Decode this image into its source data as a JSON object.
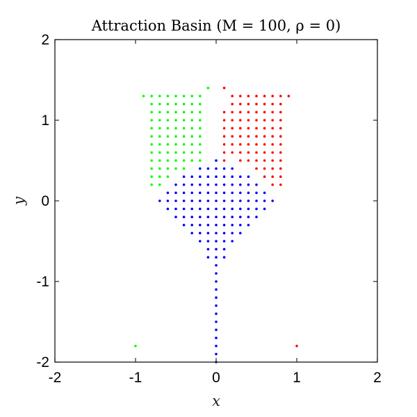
{
  "chart_data": {
    "type": "scatter",
    "title": "Attraction Basin (M = 100, ρ = 0)",
    "xlabel": "x",
    "ylabel": "y",
    "xlim": [
      -2,
      2
    ],
    "ylim": [
      -2,
      2
    ],
    "xticks": [
      "-2",
      "-1",
      "0",
      "1",
      "2"
    ],
    "yticks": [
      "-2",
      "-1",
      "0",
      "1",
      "2"
    ],
    "grid": false,
    "box": true,
    "grid_step": 0.1,
    "series": [
      {
        "color": "#00ff00",
        "rows": [
          {
            "y": 1.4,
            "x": [
              -0.1
            ]
          },
          {
            "y": 1.3,
            "x": [
              -0.9,
              -0.8,
              -0.7,
              -0.6,
              -0.5,
              -0.4,
              -0.3,
              -0.2
            ]
          },
          {
            "y": 1.2,
            "x": [
              -0.8,
              -0.7,
              -0.6,
              -0.5,
              -0.4,
              -0.3,
              -0.2
            ]
          },
          {
            "y": 1.1,
            "x": [
              -0.8,
              -0.7,
              -0.6,
              -0.5,
              -0.4,
              -0.3,
              -0.2
            ]
          },
          {
            "y": 1.0,
            "x": [
              -0.8,
              -0.7,
              -0.6,
              -0.5,
              -0.4,
              -0.3,
              -0.2
            ]
          },
          {
            "y": 0.9,
            "x": [
              -0.8,
              -0.7,
              -0.6,
              -0.5,
              -0.4,
              -0.3,
              -0.2
            ]
          },
          {
            "y": 0.8,
            "x": [
              -0.8,
              -0.7,
              -0.6,
              -0.5,
              -0.4,
              -0.3,
              -0.2
            ]
          },
          {
            "y": 0.7,
            "x": [
              -0.8,
              -0.7,
              -0.6,
              -0.5,
              -0.4,
              -0.3,
              -0.2
            ]
          },
          {
            "y": 0.6,
            "x": [
              -0.8,
              -0.7,
              -0.6,
              -0.5,
              -0.4,
              -0.3,
              -0.2
            ]
          },
          {
            "y": 0.5,
            "x": [
              -0.8,
              -0.7,
              -0.6,
              -0.5,
              -0.4,
              -0.3,
              -0.2,
              0.0
            ]
          },
          {
            "y": 0.4,
            "x": [
              -0.8,
              -0.7,
              -0.6,
              -0.5,
              -0.4
            ]
          },
          {
            "y": 0.3,
            "x": [
              -0.8,
              -0.7,
              -0.6
            ]
          },
          {
            "y": 0.2,
            "x": [
              -0.8,
              -0.7
            ]
          },
          {
            "y": -1.8,
            "x": [
              -1.0
            ]
          }
        ]
      },
      {
        "color": "#ff0000",
        "rows": [
          {
            "y": 1.4,
            "x": [
              0.1
            ]
          },
          {
            "y": 1.3,
            "x": [
              0.2,
              0.3,
              0.4,
              0.5,
              0.6,
              0.7,
              0.8,
              0.9
            ]
          },
          {
            "y": 1.2,
            "x": [
              0.2,
              0.3,
              0.4,
              0.5,
              0.6,
              0.7,
              0.8
            ]
          },
          {
            "y": 1.1,
            "x": [
              0.1,
              0.2,
              0.3,
              0.4,
              0.5,
              0.6,
              0.7,
              0.8
            ]
          },
          {
            "y": 1.0,
            "x": [
              0.1,
              0.2,
              0.3,
              0.4,
              0.5,
              0.6,
              0.7,
              0.8
            ]
          },
          {
            "y": 0.9,
            "x": [
              0.1,
              0.2,
              0.3,
              0.4,
              0.5,
              0.6,
              0.7,
              0.8
            ]
          },
          {
            "y": 0.8,
            "x": [
              0.1,
              0.2,
              0.3,
              0.4,
              0.5,
              0.6,
              0.7,
              0.8
            ]
          },
          {
            "y": 0.7,
            "x": [
              0.1,
              0.2,
              0.3,
              0.4,
              0.5,
              0.6,
              0.7,
              0.8
            ]
          },
          {
            "y": 0.6,
            "x": [
              0.1,
              0.2,
              0.3,
              0.4,
              0.5,
              0.6,
              0.7,
              0.8
            ]
          },
          {
            "y": 0.5,
            "x": [
              0.1,
              0.3,
              0.4,
              0.5,
              0.6,
              0.7,
              0.8
            ]
          },
          {
            "y": 0.4,
            "x": [
              0.5,
              0.6,
              0.7,
              0.8
            ]
          },
          {
            "y": 0.3,
            "x": [
              0.6,
              0.7,
              0.8
            ]
          },
          {
            "y": 0.2,
            "x": [
              0.7,
              0.8
            ]
          },
          {
            "y": -1.8,
            "x": [
              1.0
            ]
          }
        ]
      },
      {
        "color": "#0000ff",
        "rows": [
          {
            "y": 0.5,
            "x": [
              0.0
            ]
          },
          {
            "y": 0.4,
            "x": [
              -0.2,
              -0.1,
              0.0,
              0.1,
              0.2
            ]
          },
          {
            "y": 0.3,
            "x": [
              -0.4,
              -0.3,
              -0.2,
              -0.1,
              0.0,
              0.1,
              0.2,
              0.3,
              0.4
            ]
          },
          {
            "y": 0.2,
            "x": [
              -0.5,
              -0.4,
              -0.3,
              -0.2,
              -0.1,
              0.0,
              0.1,
              0.2,
              0.3,
              0.4,
              0.5
            ]
          },
          {
            "y": 0.1,
            "x": [
              -0.6,
              -0.5,
              -0.4,
              -0.3,
              -0.2,
              -0.1,
              0.0,
              0.1,
              0.2,
              0.3,
              0.4,
              0.5,
              0.6
            ]
          },
          {
            "y": 0.0,
            "x": [
              -0.7,
              -0.6,
              -0.5,
              -0.4,
              -0.3,
              -0.2,
              -0.1,
              0.0,
              0.1,
              0.2,
              0.3,
              0.4,
              0.5,
              0.6,
              0.7
            ]
          },
          {
            "y": -0.1,
            "x": [
              -0.6,
              -0.5,
              -0.4,
              -0.3,
              -0.2,
              -0.1,
              0.0,
              0.1,
              0.2,
              0.3,
              0.4,
              0.5,
              0.6
            ]
          },
          {
            "y": -0.2,
            "x": [
              -0.5,
              -0.4,
              -0.3,
              -0.2,
              -0.1,
              0.0,
              0.1,
              0.2,
              0.3,
              0.4,
              0.5
            ]
          },
          {
            "y": -0.3,
            "x": [
              -0.4,
              -0.3,
              -0.2,
              -0.1,
              0.0,
              0.1,
              0.2,
              0.3,
              0.4
            ]
          },
          {
            "y": -0.4,
            "x": [
              -0.3,
              -0.2,
              -0.1,
              0.0,
              0.1,
              0.2,
              0.3
            ]
          },
          {
            "y": -0.5,
            "x": [
              -0.2,
              -0.1,
              0.0,
              0.1,
              0.2
            ]
          },
          {
            "y": -0.6,
            "x": [
              -0.1,
              0.0,
              0.1
            ]
          },
          {
            "y": -0.7,
            "x": [
              -0.1,
              0.0,
              0.1
            ]
          },
          {
            "y": -0.8,
            "x": [
              0.0
            ]
          },
          {
            "y": -0.9,
            "x": [
              0.0
            ]
          },
          {
            "y": -1.0,
            "x": [
              0.0
            ]
          },
          {
            "y": -1.1,
            "x": [
              0.0
            ]
          },
          {
            "y": -1.2,
            "x": [
              0.0
            ]
          },
          {
            "y": -1.3,
            "x": [
              0.0
            ]
          },
          {
            "y": -1.4,
            "x": [
              0.0
            ]
          },
          {
            "y": -1.5,
            "x": [
              0.0
            ]
          },
          {
            "y": -1.6,
            "x": [
              0.0
            ]
          },
          {
            "y": -1.7,
            "x": [
              0.0
            ]
          },
          {
            "y": -1.8,
            "x": [
              0.0
            ]
          },
          {
            "y": -1.9,
            "x": [
              0.0
            ]
          },
          {
            "y": -2.0,
            "x": [
              0.0
            ]
          }
        ]
      }
    ]
  }
}
